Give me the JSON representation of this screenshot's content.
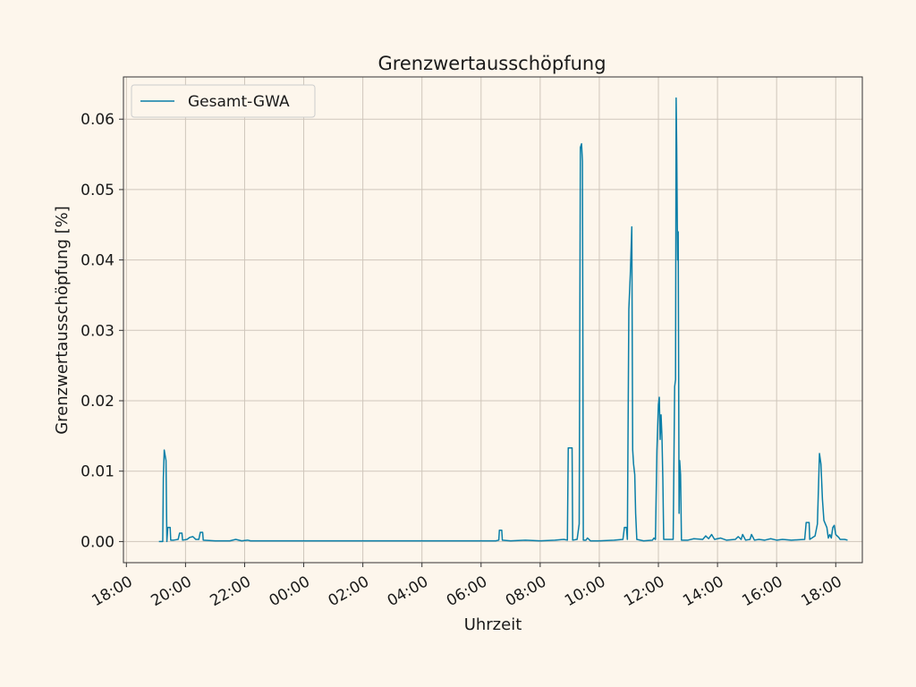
{
  "chart_data": {
    "type": "line",
    "title": "Grenzwertausschöpfung",
    "xlabel": "Uhrzeit",
    "ylabel": "Grenzwertausschöpfung [%]",
    "x_ticks": [
      "18:00",
      "20:00",
      "22:00",
      "00:00",
      "02:00",
      "04:00",
      "06:00",
      "08:00",
      "10:00",
      "12:00",
      "14:00",
      "16:00",
      "18:00"
    ],
    "x_unit": "hours_since_first_tick",
    "xlim": [
      -0.1,
      24.9
    ],
    "ylim": [
      -0.003,
      0.066
    ],
    "y_ticks": [
      0.0,
      0.01,
      0.02,
      0.03,
      0.04,
      0.05,
      0.06
    ],
    "y_tick_labels": [
      "0.00",
      "0.01",
      "0.02",
      "0.03",
      "0.04",
      "0.05",
      "0.06"
    ],
    "grid": true,
    "legend_position": "top-left",
    "series": [
      {
        "name": "Gesamt-GWA",
        "color": "#0a7fa8",
        "points": [
          [
            1.1,
            0.0
          ],
          [
            1.18,
            0.0
          ],
          [
            1.23,
            0.0
          ],
          [
            1.25,
            0.009
          ],
          [
            1.28,
            0.013
          ],
          [
            1.3,
            0.0125
          ],
          [
            1.34,
            0.0115
          ],
          [
            1.37,
            0.0
          ],
          [
            1.4,
            0.002
          ],
          [
            1.48,
            0.002
          ],
          [
            1.5,
            0.0002
          ],
          [
            1.6,
            0.0002
          ],
          [
            1.75,
            0.0003
          ],
          [
            1.8,
            0.0012
          ],
          [
            1.88,
            0.0012
          ],
          [
            1.9,
            0.0002
          ],
          [
            2.05,
            0.0003
          ],
          [
            2.15,
            0.0006
          ],
          [
            2.25,
            0.0007
          ],
          [
            2.35,
            0.0003
          ],
          [
            2.45,
            0.0003
          ],
          [
            2.5,
            0.0013
          ],
          [
            2.58,
            0.0013
          ],
          [
            2.6,
            0.0002
          ],
          [
            3.0,
            0.0001
          ],
          [
            3.5,
            0.0001
          ],
          [
            3.7,
            0.0003
          ],
          [
            3.9,
            0.0001
          ],
          [
            4.1,
            0.0002
          ],
          [
            4.2,
            0.0001
          ],
          [
            5.0,
            0.0001
          ],
          [
            6.0,
            0.0001
          ],
          [
            7.0,
            0.0001
          ],
          [
            8.0,
            0.0001
          ],
          [
            9.0,
            0.0001
          ],
          [
            10.0,
            0.0001
          ],
          [
            11.0,
            0.0001
          ],
          [
            12.0,
            0.0001
          ],
          [
            12.5,
            0.0001
          ],
          [
            12.6,
            0.0002
          ],
          [
            12.62,
            0.0016
          ],
          [
            12.7,
            0.0016
          ],
          [
            12.72,
            0.0002
          ],
          [
            13.0,
            0.0001
          ],
          [
            13.5,
            0.0002
          ],
          [
            14.0,
            0.0001
          ],
          [
            14.5,
            0.0002
          ],
          [
            14.8,
            0.0003
          ],
          [
            14.92,
            0.0002
          ],
          [
            14.95,
            0.0133
          ],
          [
            15.08,
            0.0133
          ],
          [
            15.1,
            0.0002
          ],
          [
            15.25,
            0.0003
          ],
          [
            15.32,
            0.0025
          ],
          [
            15.36,
            0.056
          ],
          [
            15.4,
            0.0565
          ],
          [
            15.43,
            0.054
          ],
          [
            15.46,
            0.0002
          ],
          [
            15.55,
            0.0002
          ],
          [
            15.6,
            0.0005
          ],
          [
            15.7,
            0.0001
          ],
          [
            16.0,
            0.0001
          ],
          [
            16.5,
            0.0002
          ],
          [
            16.8,
            0.0003
          ],
          [
            16.85,
            0.002
          ],
          [
            16.92,
            0.002
          ],
          [
            16.95,
            0.0003
          ],
          [
            17.0,
            0.033
          ],
          [
            17.05,
            0.038
          ],
          [
            17.1,
            0.0447
          ],
          [
            17.13,
            0.013
          ],
          [
            17.16,
            0.011
          ],
          [
            17.2,
            0.0095
          ],
          [
            17.23,
            0.004
          ],
          [
            17.27,
            0.0003
          ],
          [
            17.5,
            0.0001
          ],
          [
            17.8,
            0.0002
          ],
          [
            17.85,
            0.0005
          ],
          [
            17.9,
            0.0003
          ],
          [
            17.95,
            0.013
          ],
          [
            18.0,
            0.0195
          ],
          [
            18.03,
            0.0205
          ],
          [
            18.06,
            0.0145
          ],
          [
            18.09,
            0.018
          ],
          [
            18.12,
            0.015
          ],
          [
            18.15,
            0.009
          ],
          [
            18.18,
            0.0003
          ],
          [
            18.4,
            0.0003
          ],
          [
            18.5,
            0.0003
          ],
          [
            18.55,
            0.022
          ],
          [
            18.58,
            0.023
          ],
          [
            18.6,
            0.063
          ],
          [
            18.62,
            0.056
          ],
          [
            18.65,
            0.04
          ],
          [
            18.67,
            0.044
          ],
          [
            18.7,
            0.004
          ],
          [
            18.72,
            0.0115
          ],
          [
            18.75,
            0.0095
          ],
          [
            18.78,
            0.0002
          ],
          [
            19.0,
            0.0002
          ],
          [
            19.2,
            0.0004
          ],
          [
            19.5,
            0.0003
          ],
          [
            19.6,
            0.0008
          ],
          [
            19.7,
            0.0004
          ],
          [
            19.8,
            0.001
          ],
          [
            19.9,
            0.0003
          ],
          [
            20.1,
            0.0005
          ],
          [
            20.3,
            0.0002
          ],
          [
            20.6,
            0.0003
          ],
          [
            20.7,
            0.0007
          ],
          [
            20.8,
            0.0003
          ],
          [
            20.85,
            0.001
          ],
          [
            20.95,
            0.0002
          ],
          [
            21.1,
            0.0003
          ],
          [
            21.15,
            0.001
          ],
          [
            21.25,
            0.0002
          ],
          [
            21.4,
            0.0003
          ],
          [
            21.6,
            0.0002
          ],
          [
            21.8,
            0.0004
          ],
          [
            22.0,
            0.0002
          ],
          [
            22.2,
            0.0003
          ],
          [
            22.5,
            0.0002
          ],
          [
            22.95,
            0.0003
          ],
          [
            23.0,
            0.0027
          ],
          [
            23.1,
            0.0027
          ],
          [
            23.12,
            0.0003
          ],
          [
            23.3,
            0.0008
          ],
          [
            23.38,
            0.0025
          ],
          [
            23.45,
            0.0125
          ],
          [
            23.5,
            0.011
          ],
          [
            23.55,
            0.006
          ],
          [
            23.6,
            0.003
          ],
          [
            23.7,
            0.002
          ],
          [
            23.75,
            0.0005
          ],
          [
            23.8,
            0.001
          ],
          [
            23.85,
            0.0005
          ],
          [
            23.9,
            0.002
          ],
          [
            23.95,
            0.0023
          ],
          [
            24.0,
            0.001
          ],
          [
            24.1,
            0.0006
          ],
          [
            24.15,
            0.0003
          ],
          [
            24.3,
            0.0003
          ],
          [
            24.4,
            0.0002
          ]
        ]
      }
    ]
  }
}
